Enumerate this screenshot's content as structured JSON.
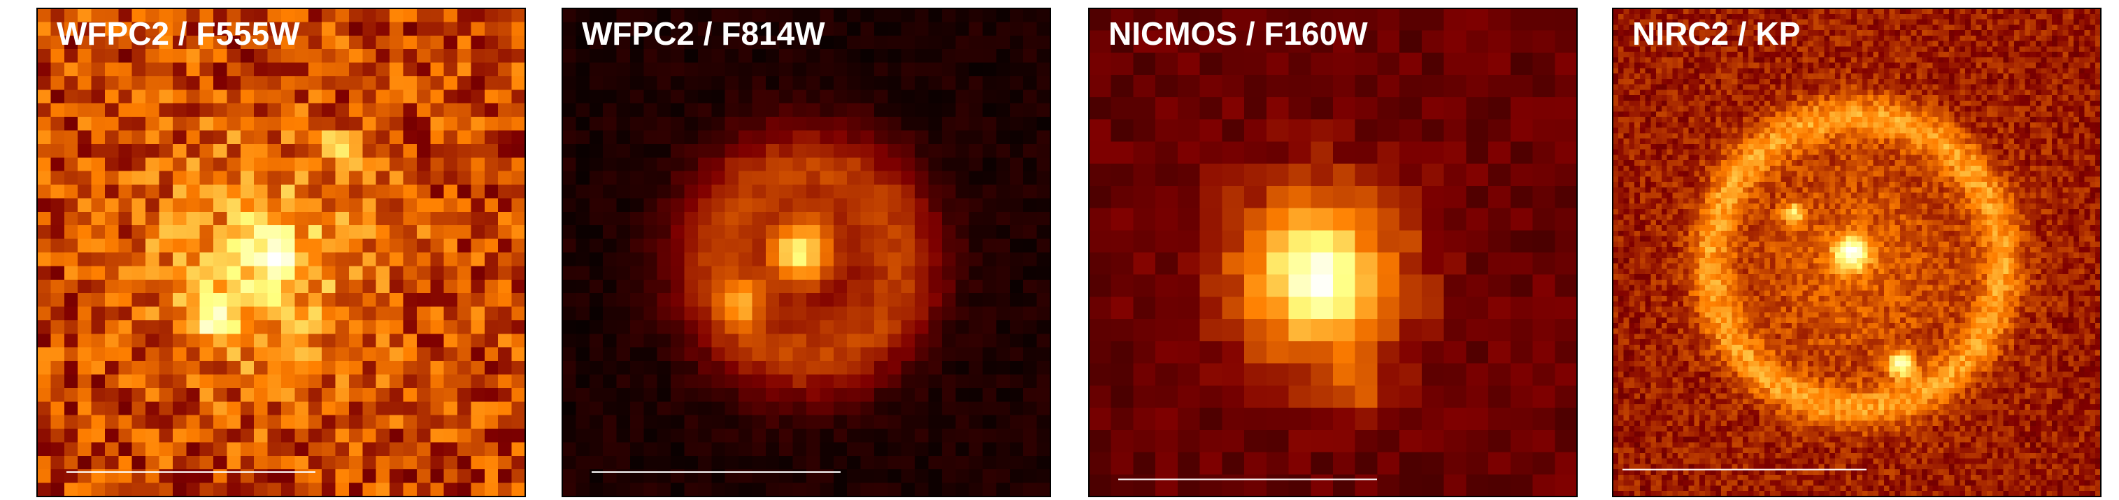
{
  "panels": [
    {
      "label": "WFPC2 / F555W"
    },
    {
      "label": "WFPC2 / F814W"
    },
    {
      "label": "NICMOS / F160W"
    },
    {
      "label": "NIRC2 / KP"
    }
  ]
}
